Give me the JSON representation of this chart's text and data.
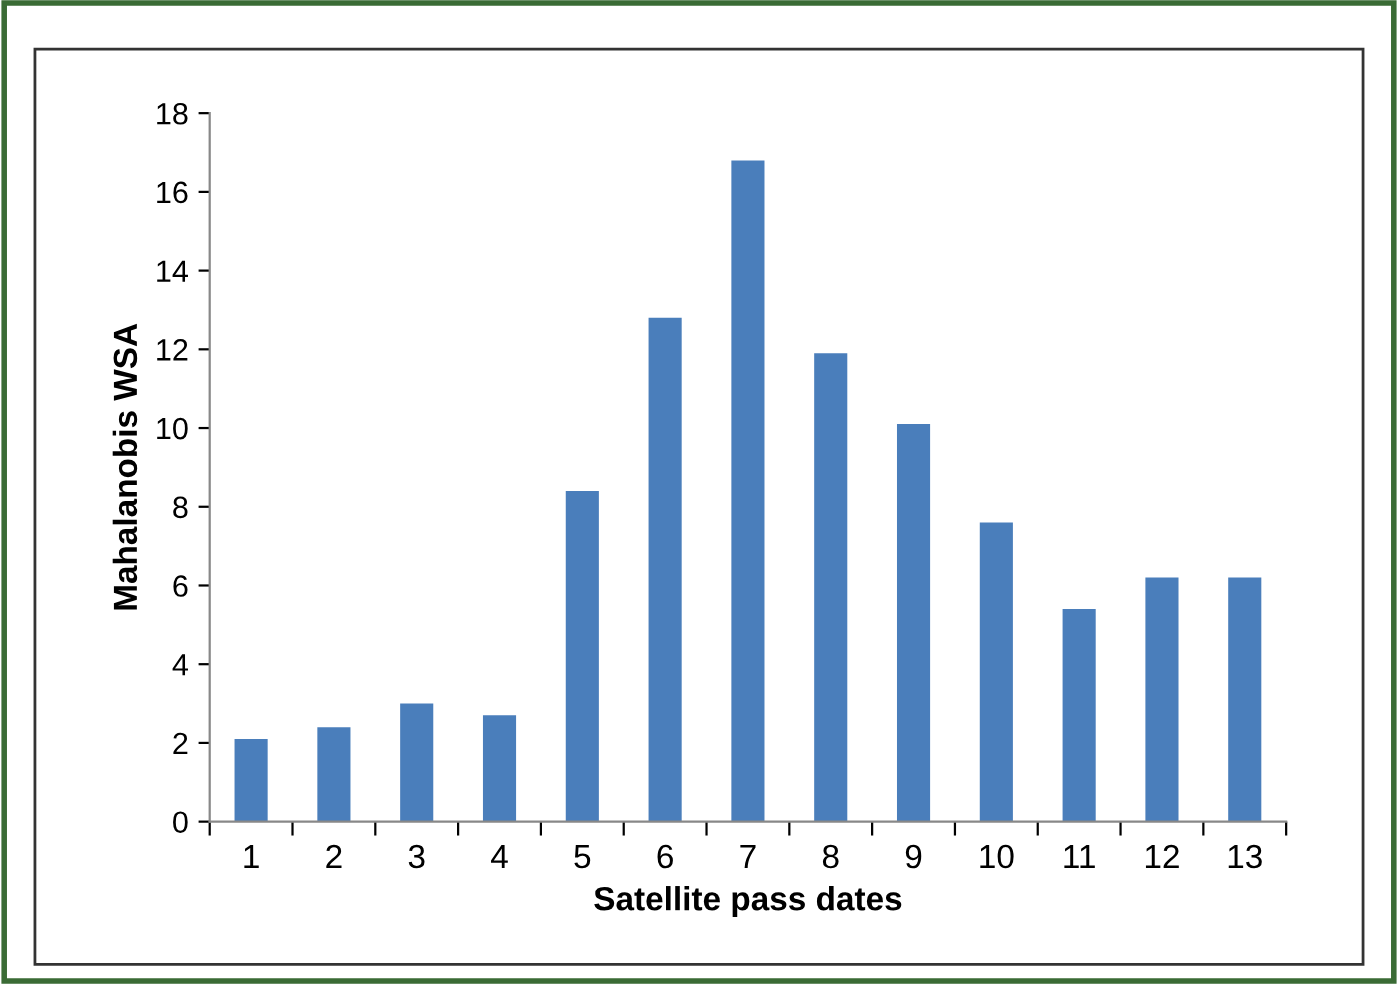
{
  "chart_data": {
    "type": "bar",
    "xlabel": "Satellite pass dates",
    "ylabel": "Mahalanobis WSA",
    "categories": [
      "1",
      "2",
      "3",
      "4",
      "5",
      "6",
      "7",
      "8",
      "9",
      "10",
      "11",
      "12",
      "13"
    ],
    "values": [
      2.1,
      2.4,
      3.0,
      2.7,
      8.4,
      12.8,
      16.8,
      11.9,
      10.1,
      7.6,
      5.4,
      6.2,
      6.2
    ],
    "color": "#4a7ebb",
    "ylim": [
      0,
      18
    ],
    "yticks": [
      0,
      2,
      4,
      6,
      8,
      10,
      12,
      14,
      16,
      18
    ],
    "grid": false,
    "legend": false
  }
}
